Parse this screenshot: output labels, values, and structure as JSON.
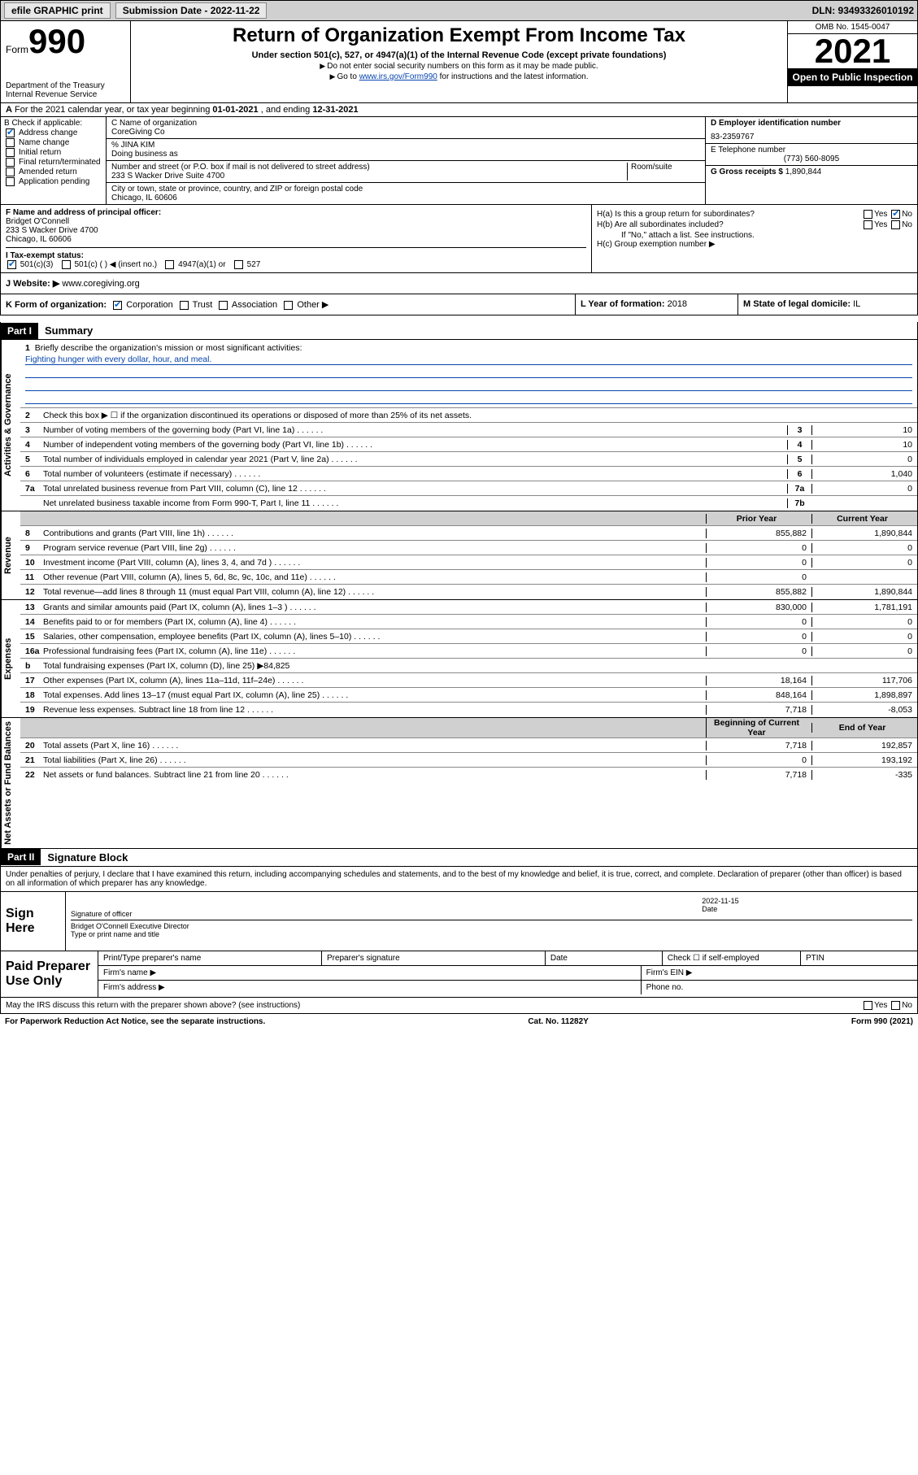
{
  "top_bar": {
    "efile_btn": "efile GRAPHIC print",
    "submission_label": "Submission Date - 2022-11-22",
    "dln": "DLN: 93493326010192"
  },
  "header": {
    "form_word": "Form",
    "form_number": "990",
    "title": "Return of Organization Exempt From Income Tax",
    "subtitle": "Under section 501(c), 527, or 4947(a)(1) of the Internal Revenue Code (except private foundations)",
    "note1": "Do not enter social security numbers on this form as it may be made public.",
    "note2_pre": "Go to ",
    "note2_link": "www.irs.gov/Form990",
    "note2_post": " for instructions and the latest information.",
    "dept": "Department of the Treasury\nInternal Revenue Service",
    "omb": "OMB No. 1545-0047",
    "year": "2021",
    "inspection": "Open to Public Inspection"
  },
  "row_a": {
    "text_pre": "For the 2021 calendar year, or tax year beginning ",
    "begin": "01-01-2021",
    "mid": " , and ending ",
    "end": "12-31-2021"
  },
  "box_b": {
    "label": "B Check if applicable:",
    "items": [
      {
        "label": "Address change",
        "checked": true
      },
      {
        "label": "Name change",
        "checked": false
      },
      {
        "label": "Initial return",
        "checked": false
      },
      {
        "label": "Final return/terminated",
        "checked": false
      },
      {
        "label": "Amended return",
        "checked": false
      },
      {
        "label": "Application pending",
        "checked": false
      }
    ]
  },
  "box_c": {
    "name_label": "C Name of organization",
    "name": "CoreGiving Co",
    "care_of_label": "% JINA KIM",
    "dba_label": "Doing business as",
    "street_label": "Number and street (or P.O. box if mail is not delivered to street address)",
    "room_label": "Room/suite",
    "street": "233 S Wacker Drive Suite 4700",
    "city_label": "City or town, state or province, country, and ZIP or foreign postal code",
    "city": "Chicago, IL  60606"
  },
  "box_d": {
    "label": "D Employer identification number",
    "value": "83-2359767"
  },
  "box_e": {
    "label": "E Telephone number",
    "value": "(773) 560-8095"
  },
  "box_g": {
    "label": "G Gross receipts $",
    "value": "1,890,844"
  },
  "box_f": {
    "label": "F Name and address of principal officer:",
    "name": "Bridget O'Connell",
    "street": "233 S Wacker Drive 4700",
    "city": "Chicago, IL  60606"
  },
  "box_h": {
    "ha_label": "H(a)  Is this a group return for subordinates?",
    "ha_no_checked": true,
    "hb_label": "H(b)  Are all subordinates included?",
    "hb_note": "If \"No,\" attach a list. See instructions.",
    "hc_label": "H(c)  Group exemption number ▶"
  },
  "row_i": {
    "label": "I   Tax-exempt status:",
    "opts": [
      "501(c)(3)",
      "501(c) (  ) ◀ (insert no.)",
      "4947(a)(1) or",
      "527"
    ],
    "checked_index": 0
  },
  "row_j": {
    "label": "J   Website: ▶",
    "value": "www.coregiving.org"
  },
  "row_k": {
    "k_label": "K Form of organization:",
    "k_opts": [
      "Corporation",
      "Trust",
      "Association",
      "Other ▶"
    ],
    "k_checked": 0,
    "l_label": "L Year of formation:",
    "l_value": "2018",
    "m_label": "M State of legal domicile:",
    "m_value": "IL"
  },
  "part1": {
    "header": "Part I",
    "title": "Summary"
  },
  "governance": {
    "side": "Activities & Governance",
    "line1_label": "Briefly describe the organization's mission or most significant activities:",
    "line1_text": "Fighting hunger with every dollar, hour, and meal.",
    "line2": "Check this box ▶ ☐  if the organization discontinued its operations or disposed of more than 25% of its net assets.",
    "rows": [
      {
        "n": "3",
        "t": "Number of voting members of the governing body (Part VI, line 1a)",
        "box": "3",
        "v": "10"
      },
      {
        "n": "4",
        "t": "Number of independent voting members of the governing body (Part VI, line 1b)",
        "box": "4",
        "v": "10"
      },
      {
        "n": "5",
        "t": "Total number of individuals employed in calendar year 2021 (Part V, line 2a)",
        "box": "5",
        "v": "0"
      },
      {
        "n": "6",
        "t": "Total number of volunteers (estimate if necessary)",
        "box": "6",
        "v": "1,040"
      },
      {
        "n": "7a",
        "t": "Total unrelated business revenue from Part VIII, column (C), line 12",
        "box": "7a",
        "v": "0"
      },
      {
        "n": "",
        "t": "Net unrelated business taxable income from Form 990-T, Part I, line 11",
        "box": "7b",
        "v": ""
      }
    ]
  },
  "revenue": {
    "side": "Revenue",
    "header_prior": "Prior Year",
    "header_current": "Current Year",
    "rows": [
      {
        "n": "8",
        "t": "Contributions and grants (Part VIII, line 1h)",
        "p": "855,882",
        "c": "1,890,844"
      },
      {
        "n": "9",
        "t": "Program service revenue (Part VIII, line 2g)",
        "p": "0",
        "c": "0"
      },
      {
        "n": "10",
        "t": "Investment income (Part VIII, column (A), lines 3, 4, and 7d )",
        "p": "0",
        "c": "0"
      },
      {
        "n": "11",
        "t": "Other revenue (Part VIII, column (A), lines 5, 6d, 8c, 9c, 10c, and 11e)",
        "p": "0",
        "c": ""
      },
      {
        "n": "12",
        "t": "Total revenue—add lines 8 through 11 (must equal Part VIII, column (A), line 12)",
        "p": "855,882",
        "c": "1,890,844"
      }
    ]
  },
  "expenses": {
    "side": "Expenses",
    "rows": [
      {
        "n": "13",
        "t": "Grants and similar amounts paid (Part IX, column (A), lines 1–3 )",
        "p": "830,000",
        "c": "1,781,191"
      },
      {
        "n": "14",
        "t": "Benefits paid to or for members (Part IX, column (A), line 4)",
        "p": "0",
        "c": "0"
      },
      {
        "n": "15",
        "t": "Salaries, other compensation, employee benefits (Part IX, column (A), lines 5–10)",
        "p": "0",
        "c": "0"
      },
      {
        "n": "16a",
        "t": "Professional fundraising fees (Part IX, column (A), line 11e)",
        "p": "0",
        "c": "0"
      },
      {
        "n": "b",
        "t": "Total fundraising expenses (Part IX, column (D), line 25) ▶84,825",
        "p": "",
        "c": "",
        "shaded": true
      },
      {
        "n": "17",
        "t": "Other expenses (Part IX, column (A), lines 11a–11d, 11f–24e)",
        "p": "18,164",
        "c": "117,706"
      },
      {
        "n": "18",
        "t": "Total expenses. Add lines 13–17 (must equal Part IX, column (A), line 25)",
        "p": "848,164",
        "c": "1,898,897"
      },
      {
        "n": "19",
        "t": "Revenue less expenses. Subtract line 18 from line 12",
        "p": "7,718",
        "c": "-8,053"
      }
    ]
  },
  "netassets": {
    "side": "Net Assets or Fund Balances",
    "header_begin": "Beginning of Current Year",
    "header_end": "End of Year",
    "rows": [
      {
        "n": "20",
        "t": "Total assets (Part X, line 16)",
        "p": "7,718",
        "c": "192,857"
      },
      {
        "n": "21",
        "t": "Total liabilities (Part X, line 26)",
        "p": "0",
        "c": "193,192"
      },
      {
        "n": "22",
        "t": "Net assets or fund balances. Subtract line 21 from line 20",
        "p": "7,718",
        "c": "-335"
      }
    ]
  },
  "part2": {
    "header": "Part II",
    "title": "Signature Block",
    "penalty": "Under penalties of perjury, I declare that I have examined this return, including accompanying schedules and statements, and to the best of my knowledge and belief, it is true, correct, and complete. Declaration of preparer (other than officer) is based on all information of which preparer has any knowledge."
  },
  "sign": {
    "label": "Sign Here",
    "sig_label": "Signature of officer",
    "date_label": "Date",
    "date": "2022-11-15",
    "name": "Bridget O'Connell  Executive Director",
    "name_label": "Type or print name and title"
  },
  "prep": {
    "label": "Paid Preparer Use Only",
    "cols": [
      "Print/Type preparer's name",
      "Preparer's signature",
      "Date",
      "Check ☐ if self-employed",
      "PTIN"
    ],
    "firm_name": "Firm's name  ▶",
    "firm_ein": "Firm's EIN ▶",
    "firm_addr": "Firm's address ▶",
    "phone": "Phone no."
  },
  "footer": {
    "discuss": "May the IRS discuss this return with the preparer shown above? (see instructions)",
    "paperwork": "For Paperwork Reduction Act Notice, see the separate instructions.",
    "cat": "Cat. No. 11282Y",
    "form": "Form 990 (2021)"
  }
}
